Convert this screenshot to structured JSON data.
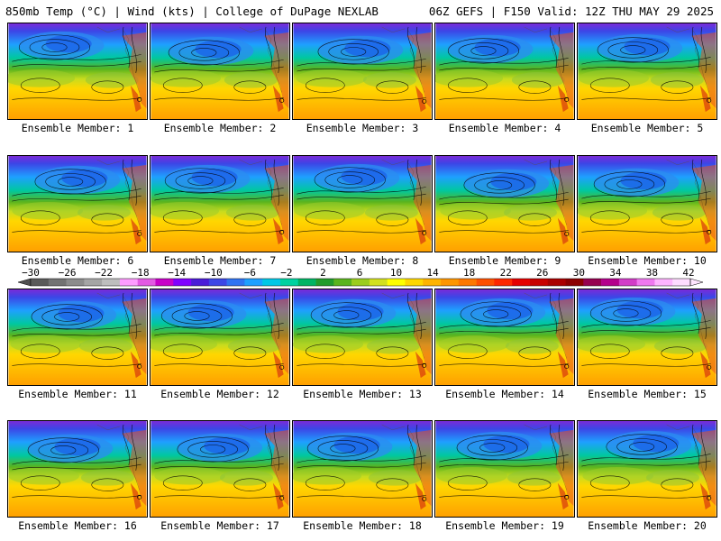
{
  "header": {
    "left": "850mb Temp (°C) | Wind (kts) | College of DuPage NEXLAB",
    "right": "06Z GEFS | F150 Valid: 12Z THU MAY 29 2025"
  },
  "members": [
    {
      "label": "Ensemble Member: 1"
    },
    {
      "label": "Ensemble Member: 2"
    },
    {
      "label": "Ensemble Member: 3"
    },
    {
      "label": "Ensemble Member: 4"
    },
    {
      "label": "Ensemble Member: 5"
    },
    {
      "label": "Ensemble Member: 6"
    },
    {
      "label": "Ensemble Member: 7"
    },
    {
      "label": "Ensemble Member: 8"
    },
    {
      "label": "Ensemble Member: 9"
    },
    {
      "label": "Ensemble Member: 10"
    },
    {
      "label": "Ensemble Member: 11"
    },
    {
      "label": "Ensemble Member: 12"
    },
    {
      "label": "Ensemble Member: 13"
    },
    {
      "label": "Ensemble Member: 14"
    },
    {
      "label": "Ensemble Member: 15"
    },
    {
      "label": "Ensemble Member: 16"
    },
    {
      "label": "Ensemble Member: 17"
    },
    {
      "label": "Ensemble Member: 18"
    },
    {
      "label": "Ensemble Member: 19"
    },
    {
      "label": "Ensemble Member: 20"
    }
  ],
  "colorbar": {
    "labels": [
      "−30",
      "−26",
      "−22",
      "−18",
      "−14",
      "−10",
      "−6",
      "−2",
      "2",
      "6",
      "10",
      "14",
      "18",
      "22",
      "26",
      "30",
      "34",
      "38",
      "42"
    ],
    "colors": [
      "#5a5a5a",
      "#737373",
      "#8c8c8c",
      "#a5a5a5",
      "#bebebe",
      "#ff9cff",
      "#e35ae3",
      "#c800c8",
      "#8000ff",
      "#4b1cd8",
      "#3c46e6",
      "#2f73f2",
      "#1ea0ff",
      "#00c8e6",
      "#00d2a0",
      "#00b464",
      "#229c2c",
      "#5ab41e",
      "#9bcd1e",
      "#d2e01e",
      "#ffff00",
      "#ffd700",
      "#ffb400",
      "#ff9600",
      "#ff7800",
      "#ff5000",
      "#ff2800",
      "#e60000",
      "#c80000",
      "#aa0000",
      "#8c0000",
      "#960050",
      "#b4008c",
      "#d23cc8",
      "#f078f0",
      "#ffb4ff",
      "#ffdcff"
    ]
  }
}
